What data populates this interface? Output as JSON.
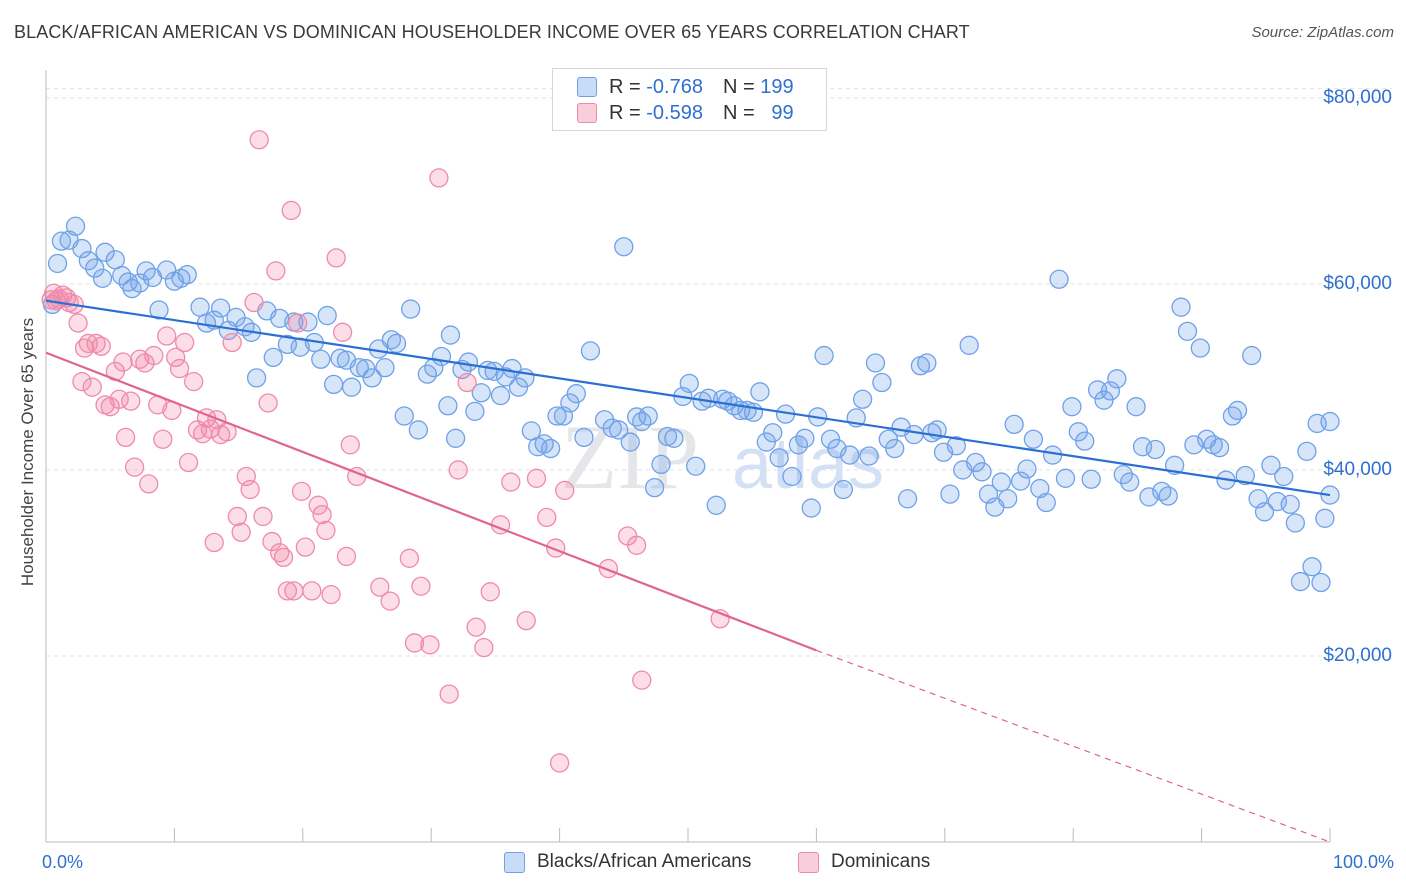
{
  "title": "BLACK/AFRICAN AMERICAN VS DOMINICAN HOUSEHOLDER INCOME OVER 65 YEARS CORRELATION CHART",
  "source": "Source: ZipAtlas.com",
  "watermark": {
    "zip": "ZIP",
    "atlas": "atlas"
  },
  "legend_top": [
    {
      "r_label": "R = ",
      "r_value": "-0.768",
      "n_label": "N = ",
      "n_value": "199",
      "color": "#6fa1e8"
    },
    {
      "r_label": "R = ",
      "r_value": "-0.598",
      "n_label": "N = ",
      "n_value": "99",
      "color": "#f08aaa"
    }
  ],
  "chart_data": {
    "type": "scatter",
    "title": "BLACK/AFRICAN AMERICAN VS DOMINICAN HOUSEHOLDER INCOME OVER 65 YEARS CORRELATION CHART",
    "xlabel": "",
    "ylabel": "Householder Income Over 65 years",
    "xlim": [
      0,
      100
    ],
    "ylim": [
      0,
      83000
    ],
    "x_tick_labels": [
      "0.0%",
      "100.0%"
    ],
    "y_ticks": [
      20000,
      40000,
      60000,
      80000
    ],
    "y_tick_labels": [
      "$20,000",
      "$40,000",
      "$60,000",
      "$80,000"
    ],
    "grid": true,
    "legend_position": "bottom",
    "series": [
      {
        "name": "Blacks/African Americans",
        "color": "#6fa1e8",
        "line_color": "#2a6fd3",
        "trend": {
          "x": [
            0,
            100
          ],
          "y": [
            58200,
            37300
          ],
          "dashed_from": null
        },
        "points": [
          [
            0.5,
            57800
          ],
          [
            0.9,
            62200
          ],
          [
            1.2,
            64600
          ],
          [
            1.8,
            64700
          ],
          [
            2.3,
            66200
          ],
          [
            2.8,
            63800
          ],
          [
            3.3,
            62500
          ],
          [
            3.8,
            61700
          ],
          [
            4.4,
            60600
          ],
          [
            4.6,
            63400
          ],
          [
            5.4,
            62600
          ],
          [
            5.9,
            60900
          ],
          [
            6.4,
            60200
          ],
          [
            6.7,
            59500
          ],
          [
            7.3,
            60100
          ],
          [
            7.8,
            61400
          ],
          [
            8.3,
            60700
          ],
          [
            8.8,
            57200
          ],
          [
            9.4,
            61500
          ],
          [
            10.0,
            60300
          ],
          [
            10.5,
            60600
          ],
          [
            11.0,
            61000
          ],
          [
            12.0,
            57500
          ],
          [
            12.5,
            55800
          ],
          [
            13.1,
            56100
          ],
          [
            13.6,
            57400
          ],
          [
            14.2,
            55000
          ],
          [
            14.8,
            56400
          ],
          [
            15.5,
            55400
          ],
          [
            16.0,
            54800
          ],
          [
            16.4,
            49900
          ],
          [
            17.2,
            57100
          ],
          [
            17.7,
            52100
          ],
          [
            18.2,
            56300
          ],
          [
            18.8,
            53500
          ],
          [
            19.3,
            55900
          ],
          [
            19.8,
            53200
          ],
          [
            20.4,
            55900
          ],
          [
            20.9,
            53700
          ],
          [
            21.4,
            51900
          ],
          [
            21.9,
            56600
          ],
          [
            22.4,
            49200
          ],
          [
            22.9,
            52000
          ],
          [
            23.4,
            51800
          ],
          [
            23.8,
            48900
          ],
          [
            24.4,
            51000
          ],
          [
            24.9,
            50900
          ],
          [
            25.4,
            49900
          ],
          [
            25.9,
            53000
          ],
          [
            26.4,
            51000
          ],
          [
            26.9,
            54000
          ],
          [
            27.3,
            53600
          ],
          [
            27.9,
            45800
          ],
          [
            28.4,
            57300
          ],
          [
            29.0,
            44300
          ],
          [
            29.7,
            50300
          ],
          [
            30.2,
            51000
          ],
          [
            30.8,
            52200
          ],
          [
            31.3,
            46900
          ],
          [
            31.5,
            54500
          ],
          [
            31.9,
            43400
          ],
          [
            32.4,
            50800
          ],
          [
            32.9,
            51600
          ],
          [
            33.4,
            46300
          ],
          [
            33.9,
            48300
          ],
          [
            34.4,
            50700
          ],
          [
            34.9,
            50600
          ],
          [
            35.4,
            48000
          ],
          [
            35.8,
            50000
          ],
          [
            36.3,
            50900
          ],
          [
            36.8,
            48900
          ],
          [
            37.3,
            49900
          ],
          [
            37.8,
            44200
          ],
          [
            38.3,
            42500
          ],
          [
            38.8,
            42800
          ],
          [
            39.3,
            42300
          ],
          [
            39.8,
            45800
          ],
          [
            40.3,
            45800
          ],
          [
            40.8,
            47200
          ],
          [
            41.3,
            48200
          ],
          [
            41.9,
            43500
          ],
          [
            42.4,
            52800
          ],
          [
            43.5,
            45400
          ],
          [
            44.1,
            44500
          ],
          [
            44.6,
            44300
          ],
          [
            45.0,
            64000
          ],
          [
            45.5,
            43000
          ],
          [
            46.0,
            45700
          ],
          [
            46.4,
            45200
          ],
          [
            46.9,
            45800
          ],
          [
            47.4,
            38100
          ],
          [
            47.9,
            40600
          ],
          [
            48.4,
            43600
          ],
          [
            48.9,
            43400
          ],
          [
            49.6,
            47900
          ],
          [
            50.1,
            49300
          ],
          [
            50.6,
            40400
          ],
          [
            51.1,
            47400
          ],
          [
            51.6,
            47700
          ],
          [
            52.2,
            36200
          ],
          [
            52.7,
            47600
          ],
          [
            53.1,
            47400
          ],
          [
            53.6,
            46900
          ],
          [
            54.1,
            46400
          ],
          [
            54.6,
            46400
          ],
          [
            55.1,
            46200
          ],
          [
            55.6,
            48400
          ],
          [
            56.1,
            43000
          ],
          [
            56.6,
            44000
          ],
          [
            57.1,
            41300
          ],
          [
            57.6,
            46000
          ],
          [
            58.1,
            39300
          ],
          [
            58.6,
            42700
          ],
          [
            59.1,
            43400
          ],
          [
            59.6,
            35900
          ],
          [
            60.1,
            45700
          ],
          [
            60.6,
            52300
          ],
          [
            61.1,
            43300
          ],
          [
            61.6,
            42300
          ],
          [
            62.1,
            37900
          ],
          [
            62.6,
            41600
          ],
          [
            63.1,
            45600
          ],
          [
            63.6,
            47600
          ],
          [
            64.1,
            41500
          ],
          [
            64.6,
            51500
          ],
          [
            65.1,
            49400
          ],
          [
            65.6,
            43300
          ],
          [
            66.1,
            42300
          ],
          [
            66.6,
            44600
          ],
          [
            67.1,
            36900
          ],
          [
            67.6,
            43800
          ],
          [
            68.1,
            51200
          ],
          [
            68.6,
            51500
          ],
          [
            69.0,
            44000
          ],
          [
            69.4,
            44300
          ],
          [
            69.9,
            41900
          ],
          [
            70.4,
            37400
          ],
          [
            70.9,
            42600
          ],
          [
            71.4,
            40000
          ],
          [
            71.9,
            53400
          ],
          [
            72.4,
            40800
          ],
          [
            72.9,
            39800
          ],
          [
            73.4,
            37400
          ],
          [
            73.9,
            36000
          ],
          [
            74.4,
            38700
          ],
          [
            74.9,
            36900
          ],
          [
            75.4,
            44900
          ],
          [
            75.9,
            38800
          ],
          [
            76.4,
            40100
          ],
          [
            76.9,
            43300
          ],
          [
            77.4,
            38000
          ],
          [
            77.9,
            36500
          ],
          [
            78.4,
            41600
          ],
          [
            78.9,
            60500
          ],
          [
            79.4,
            39100
          ],
          [
            79.9,
            46800
          ],
          [
            80.4,
            44100
          ],
          [
            80.9,
            43100
          ],
          [
            81.4,
            39000
          ],
          [
            81.9,
            48600
          ],
          [
            82.4,
            47500
          ],
          [
            82.9,
            48500
          ],
          [
            83.4,
            49800
          ],
          [
            83.9,
            39500
          ],
          [
            84.4,
            38700
          ],
          [
            84.9,
            46800
          ],
          [
            85.4,
            42500
          ],
          [
            85.9,
            37100
          ],
          [
            86.4,
            42200
          ],
          [
            86.9,
            37700
          ],
          [
            87.4,
            37200
          ],
          [
            87.9,
            40500
          ],
          [
            88.4,
            57500
          ],
          [
            88.9,
            54900
          ],
          [
            89.4,
            42700
          ],
          [
            89.9,
            53100
          ],
          [
            90.4,
            43300
          ],
          [
            90.9,
            42700
          ],
          [
            91.4,
            42400
          ],
          [
            91.9,
            38900
          ],
          [
            92.4,
            45800
          ],
          [
            92.8,
            46400
          ],
          [
            93.4,
            39400
          ],
          [
            93.9,
            52300
          ],
          [
            94.4,
            36900
          ],
          [
            94.9,
            35500
          ],
          [
            95.4,
            40500
          ],
          [
            95.9,
            36600
          ],
          [
            96.4,
            39300
          ],
          [
            96.9,
            36300
          ],
          [
            97.3,
            34300
          ],
          [
            97.7,
            28000
          ],
          [
            98.2,
            42000
          ],
          [
            98.6,
            29600
          ],
          [
            99.0,
            45000
          ],
          [
            99.3,
            27900
          ],
          [
            99.6,
            34800
          ],
          [
            100.0,
            37300
          ],
          [
            100.0,
            45200
          ]
        ]
      },
      {
        "name": "Dominicans",
        "color": "#f08aaa",
        "line_color": "#e0648e",
        "trend": {
          "x": [
            0,
            60
          ],
          "y": [
            52600,
            20600
          ],
          "dashed_to": [
            100,
            0
          ]
        },
        "points": [
          [
            0.4,
            58300
          ],
          [
            0.6,
            59000
          ],
          [
            0.8,
            58200
          ],
          [
            1.0,
            58400
          ],
          [
            1.3,
            58800
          ],
          [
            1.6,
            58500
          ],
          [
            1.8,
            58000
          ],
          [
            2.2,
            57800
          ],
          [
            2.5,
            55800
          ],
          [
            2.8,
            49500
          ],
          [
            3.0,
            53100
          ],
          [
            3.3,
            53600
          ],
          [
            3.6,
            48900
          ],
          [
            3.9,
            53600
          ],
          [
            4.3,
            53300
          ],
          [
            4.6,
            47000
          ],
          [
            5.0,
            46800
          ],
          [
            5.4,
            50600
          ],
          [
            5.7,
            47600
          ],
          [
            6.0,
            51600
          ],
          [
            6.2,
            43500
          ],
          [
            6.6,
            47400
          ],
          [
            6.9,
            40300
          ],
          [
            7.3,
            51900
          ],
          [
            7.7,
            51500
          ],
          [
            8.0,
            38500
          ],
          [
            8.4,
            52300
          ],
          [
            8.7,
            47000
          ],
          [
            9.1,
            43300
          ],
          [
            9.4,
            54400
          ],
          [
            9.8,
            46400
          ],
          [
            10.1,
            52100
          ],
          [
            10.4,
            50900
          ],
          [
            10.8,
            53700
          ],
          [
            11.1,
            40800
          ],
          [
            11.5,
            49500
          ],
          [
            11.8,
            44300
          ],
          [
            12.2,
            43900
          ],
          [
            12.5,
            45600
          ],
          [
            12.8,
            44400
          ],
          [
            13.1,
            32200
          ],
          [
            13.3,
            45400
          ],
          [
            13.6,
            43800
          ],
          [
            14.1,
            44100
          ],
          [
            14.5,
            53700
          ],
          [
            14.9,
            35000
          ],
          [
            15.2,
            33300
          ],
          [
            15.6,
            39300
          ],
          [
            15.9,
            37900
          ],
          [
            16.2,
            58000
          ],
          [
            16.6,
            75500
          ],
          [
            16.9,
            35000
          ],
          [
            17.3,
            47200
          ],
          [
            17.6,
            32300
          ],
          [
            17.9,
            61400
          ],
          [
            18.2,
            31100
          ],
          [
            18.5,
            30600
          ],
          [
            18.8,
            27000
          ],
          [
            19.1,
            67900
          ],
          [
            19.3,
            27000
          ],
          [
            19.6,
            55800
          ],
          [
            19.9,
            37700
          ],
          [
            20.2,
            31700
          ],
          [
            20.7,
            27000
          ],
          [
            21.2,
            36200
          ],
          [
            21.5,
            35200
          ],
          [
            21.8,
            33500
          ],
          [
            22.2,
            26600
          ],
          [
            22.6,
            62800
          ],
          [
            23.1,
            54800
          ],
          [
            23.4,
            30700
          ],
          [
            23.7,
            42700
          ],
          [
            24.2,
            39300
          ],
          [
            26.0,
            27400
          ],
          [
            26.8,
            25900
          ],
          [
            28.3,
            30500
          ],
          [
            28.7,
            21400
          ],
          [
            29.2,
            27500
          ],
          [
            29.9,
            21200
          ],
          [
            30.6,
            71400
          ],
          [
            31.4,
            15900
          ],
          [
            32.1,
            40000
          ],
          [
            32.8,
            49400
          ],
          [
            33.5,
            23100
          ],
          [
            34.1,
            20900
          ],
          [
            34.6,
            26900
          ],
          [
            35.4,
            34100
          ],
          [
            36.2,
            38700
          ],
          [
            37.4,
            23800
          ],
          [
            38.2,
            39100
          ],
          [
            39.0,
            34900
          ],
          [
            39.7,
            31600
          ],
          [
            40.4,
            37800
          ],
          [
            43.8,
            29400
          ],
          [
            45.3,
            32900
          ],
          [
            46.0,
            31900
          ],
          [
            46.4,
            17400
          ],
          [
            52.5,
            24000
          ],
          [
            40.0,
            8500
          ]
        ]
      }
    ]
  }
}
